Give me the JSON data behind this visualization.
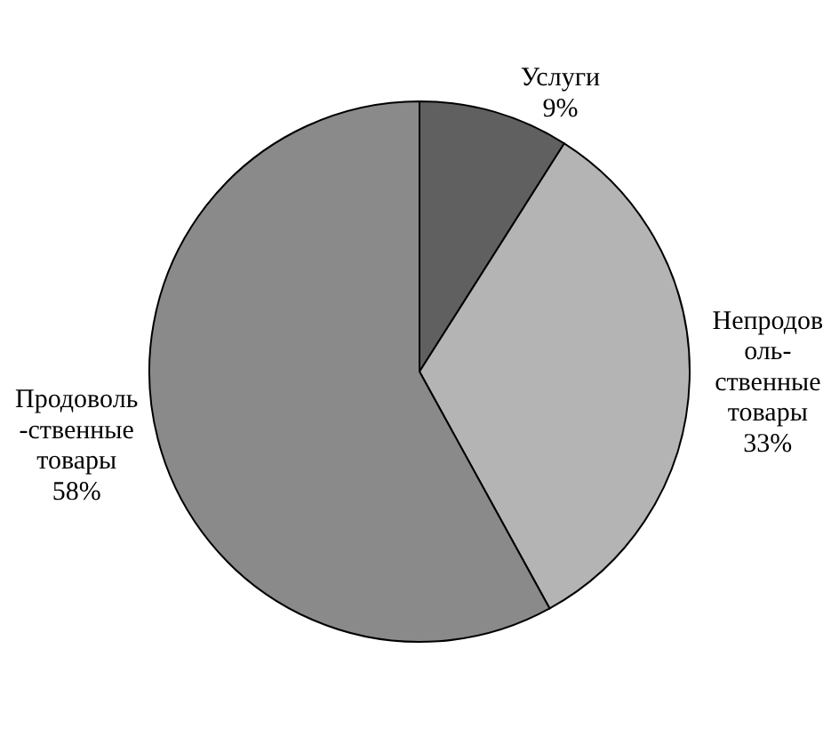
{
  "chart_data": {
    "type": "pie",
    "categories": [
      "Услуги",
      "Непродов\nоль-\nственные\nтовары",
      "Продоволь\n-ственные\nтовары"
    ],
    "values": [
      9,
      33,
      58
    ],
    "colors": [
      "#606060",
      "#b4b4b4",
      "#8a8a8a"
    ],
    "value_labels": [
      "9%",
      "33%",
      "58%"
    ]
  }
}
